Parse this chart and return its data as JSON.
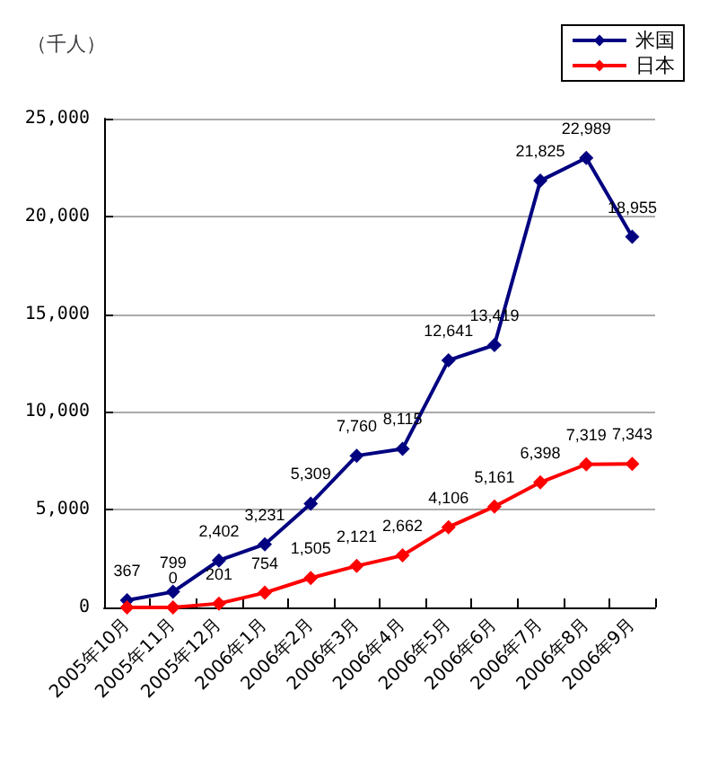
{
  "chart_data": {
    "type": "line",
    "ylabel": "（千人）",
    "categories": [
      "2005年10月",
      "2005年11月",
      "2005年12月",
      "2006年1月",
      "2006年2月",
      "2006年3月",
      "2006年4月",
      "2006年5月",
      "2006年6月",
      "2006年7月",
      "2006年8月",
      "2006年9月"
    ],
    "series": [
      {
        "name": "米国",
        "color": "#000080",
        "values": [
          367,
          799,
          2402,
          3231,
          5309,
          7760,
          8115,
          12641,
          13419,
          21825,
          22989,
          18955
        ],
        "value_labels": [
          "367",
          "799",
          "2,402",
          "3,231",
          "5,309",
          "7,760",
          "8,115",
          "12,641",
          "13,419",
          "21,825",
          "22,989",
          "18,955"
        ]
      },
      {
        "name": "日本",
        "color": "#ff0000",
        "values": [
          0,
          0,
          201,
          754,
          1505,
          2121,
          2662,
          4106,
          5161,
          6398,
          7319,
          7343
        ],
        "value_labels": [
          null,
          "0",
          "201",
          "754",
          "1,505",
          "2,121",
          "2,662",
          "4,106",
          "5,161",
          "6,398",
          "7,319",
          "7,343"
        ]
      }
    ],
    "ylim": [
      0,
      25000
    ],
    "yticks": [
      {
        "value": 0,
        "label": "0"
      },
      {
        "value": 5000,
        "label": "5,000"
      },
      {
        "value": 10000,
        "label": "10,000"
      },
      {
        "value": 15000,
        "label": "15,000"
      },
      {
        "value": 20000,
        "label": "20,000"
      },
      {
        "value": 25000,
        "label": "25,000"
      }
    ],
    "grid": "y",
    "legend": "top right",
    "marker": "diamond",
    "line_style": "solid"
  }
}
